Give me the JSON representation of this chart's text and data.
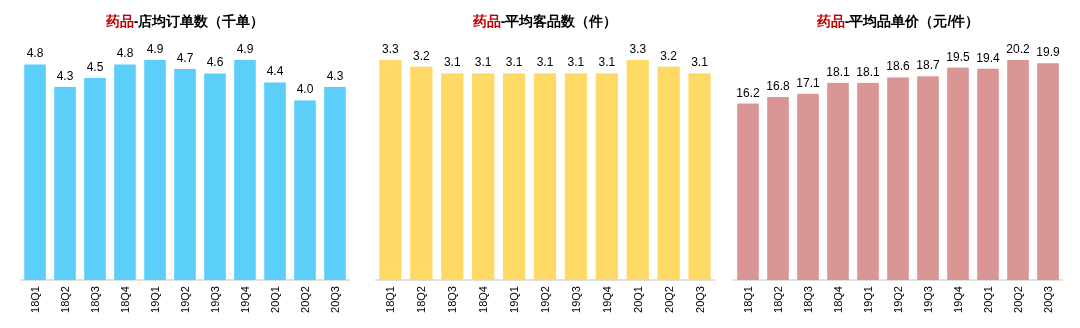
{
  "chart_data": [
    {
      "type": "bar",
      "title": "药品-店均订单数（千单）",
      "categories": [
        "18Q1",
        "18Q2",
        "18Q3",
        "18Q4",
        "19Q1",
        "19Q2",
        "19Q3",
        "19Q4",
        "20Q1",
        "20Q2",
        "20Q3"
      ],
      "values": [
        4.8,
        4.3,
        4.5,
        4.8,
        4.9,
        4.7,
        4.6,
        4.9,
        4.4,
        4.0,
        4.3
      ],
      "value_labels": [
        "4.8",
        "4.3",
        "4.5",
        "4.8",
        "4.9",
        "4.7",
        "4.6",
        "4.9",
        "4.4",
        "4.0",
        "4.3"
      ],
      "color": "#5bcffa"
    },
    {
      "type": "bar",
      "title": "药品-平均客品数（件）",
      "categories": [
        "18Q1",
        "18Q2",
        "18Q3",
        "18Q4",
        "19Q1",
        "19Q2",
        "19Q3",
        "19Q4",
        "20Q1",
        "20Q2",
        "20Q3"
      ],
      "values": [
        3.3,
        3.2,
        3.1,
        3.1,
        3.1,
        3.1,
        3.1,
        3.1,
        3.3,
        3.2,
        3.1
      ],
      "color": "#ffd966",
      "data_labels": true
    },
    {
      "type": "bar",
      "title": "药品-平均品单价（元/件）",
      "categories": [
        "18Q1",
        "18Q2",
        "18Q3",
        "18Q4",
        "19Q1",
        "19Q2",
        "19Q3",
        "19Q4",
        "20Q1",
        "20Q2",
        "20Q3"
      ],
      "values": [
        16.2,
        16.8,
        17.1,
        18.1,
        18.1,
        18.6,
        18.7,
        19.5,
        19.4,
        20.2,
        19.9
      ],
      "color": "#d99594",
      "data_labels": true
    }
  ]
}
